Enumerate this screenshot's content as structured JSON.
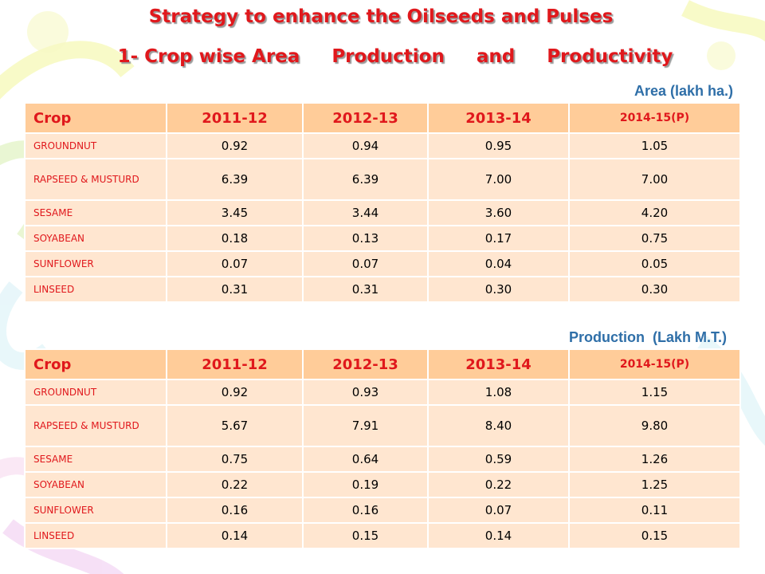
{
  "title": "Strategy to enhance the Oilseeds and Pulses",
  "subtitle": {
    "part1": "1- Crop wise Area",
    "part2": "Production",
    "part3": "and",
    "part4": "Productivity"
  },
  "area_unit": "Area (lakh ha.)",
  "production_unit": "Production  (Lakh M.T.)",
  "colors": {
    "title": "#e0181c",
    "unit": "#2f6fa8",
    "header_bg": "#ffcc99",
    "row_bg": "#ffe6d0"
  },
  "area_table": {
    "headers": [
      "Crop",
      "2011-12",
      "2012-13",
      "2013-14",
      "2014-15(P)"
    ],
    "rows": [
      {
        "crop": "GROUNDNUT",
        "values": [
          "0.92",
          "0.94",
          "0.95",
          "1.05"
        ]
      },
      {
        "crop": "RAPSEED & MUSTURD",
        "values": [
          "6.39",
          "6.39",
          "7.00",
          "7.00"
        ]
      },
      {
        "crop": "SESAME",
        "values": [
          "3.45",
          "3.44",
          "3.60",
          "4.20"
        ]
      },
      {
        "crop": "SOYABEAN",
        "values": [
          "0.18",
          "0.13",
          "0.17",
          "0.75"
        ]
      },
      {
        "crop": "SUNFLOWER",
        "values": [
          "0.07",
          "0.07",
          "0.04",
          "0.05"
        ]
      },
      {
        "crop": "LINSEED",
        "values": [
          "0.31",
          "0.31",
          "0.30",
          "0.30"
        ]
      }
    ]
  },
  "production_table": {
    "headers": [
      "Crop",
      "2011-12",
      "2012-13",
      "2013-14",
      "2014-15(P)"
    ],
    "rows": [
      {
        "crop": "GROUNDNUT",
        "values": [
          "0.92",
          "0.93",
          "1.08",
          "1.15"
        ]
      },
      {
        "crop": "RAPSEED & MUSTURD",
        "values": [
          "5.67",
          "7.91",
          "8.40",
          "9.80"
        ]
      },
      {
        "crop": "SESAME",
        "values": [
          "0.75",
          "0.64",
          "0.59",
          "1.26"
        ]
      },
      {
        "crop": "SOYABEAN",
        "values": [
          "0.22",
          "0.19",
          "0.22",
          "1.25"
        ]
      },
      {
        "crop": "SUNFLOWER",
        "values": [
          "0.16",
          "0.16",
          "0.07",
          "0.11"
        ]
      },
      {
        "crop": "LINSEED",
        "values": [
          "0.14",
          "0.15",
          "0.14",
          "0.15"
        ]
      }
    ]
  }
}
